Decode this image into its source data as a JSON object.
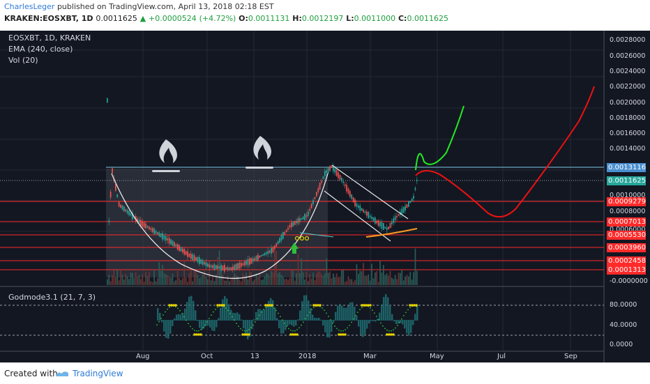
{
  "header": {
    "author": "CharlesLeger",
    "published_text": "published on TradingView.com, April 13, 2018 02:18 EST",
    "symbol": "KRAKEN:EOSXBT, 1D",
    "last": "0.0011625",
    "change": "+0.0000524",
    "change_pct": "(+4.72%)",
    "o_label": "O:",
    "o_value": "0.0011131",
    "h_label": "H:",
    "h_value": "0.0012197",
    "l_label": "L:",
    "l_value": "0.0011000",
    "c_label": "C:",
    "c_value": "0.0011625"
  },
  "legend": {
    "main": "EOSXBT, 1D, KRAKEN",
    "ema": "EMA (240, close)",
    "vol": "Vol (20)",
    "oscillator": "Godmode3.1 (21, 7, 3)"
  },
  "price_axis": [
    "0.0028000",
    "0.0026000",
    "0.0024000",
    "0.0022000",
    "0.0020000",
    "0.0018000",
    "0.0016000",
    "0.0014000",
    "0.0010000",
    "0.0008000",
    "0.0006000",
    "-0.0000000"
  ],
  "price_labels": [
    {
      "value": "0.0013116",
      "color": "#4a8fd1",
      "text_color": "#ffffff"
    },
    {
      "value": "0.0011625",
      "color": "#26a69a",
      "text_color": "#ffffff"
    },
    {
      "value": "0.0009279",
      "color": "#ff2a2a",
      "text_color": "#ffffff"
    },
    {
      "value": "0.0007013",
      "color": "#ff2a2a",
      "text_color": "#ffffff"
    },
    {
      "value": "0.0005530",
      "color": "#ff2a2a",
      "text_color": "#ffffff"
    },
    {
      "value": "0.0003960",
      "color": "#ff2a2a",
      "text_color": "#ffffff"
    },
    {
      "value": "0.0002458",
      "color": "#ff2a2a",
      "text_color": "#ffffff"
    },
    {
      "value": "0.0001313",
      "color": "#ff2a2a",
      "text_color": "#ffffff"
    }
  ],
  "osc_axis": [
    "80.0000",
    "40.0000",
    "0.0000"
  ],
  "time_axis": [
    "Aug",
    "Oct",
    "13",
    "2018",
    "Mar",
    "May",
    "Jul",
    "Sep"
  ],
  "footer": {
    "created": "Created with",
    "brand": "TradingView"
  },
  "chart_data": {
    "type": "candlestick",
    "symbol": "EOSXBT",
    "interval": "1D",
    "exchange": "KRAKEN",
    "y_range": [
      0.0,
      0.0029
    ],
    "annotations": {
      "horizontal_levels": [
        0.0013116,
        0.0009279,
        0.0007013,
        0.000553,
        0.000396,
        0.0002458,
        0.0001313
      ],
      "last_price": 0.0011625,
      "projections": [
        "green",
        "red"
      ]
    },
    "oscillator": {
      "name": "Godmode3.1",
      "params": [
        21,
        7,
        3
      ],
      "y_ticks": [
        0,
        40,
        80
      ]
    }
  }
}
